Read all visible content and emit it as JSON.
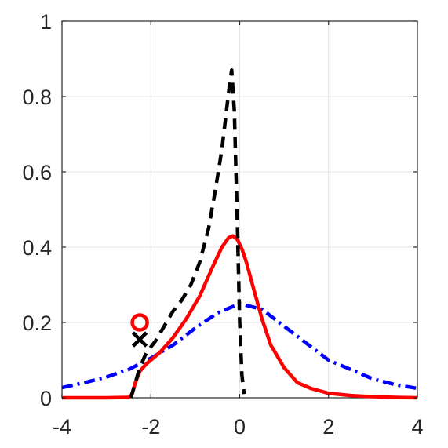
{
  "chart_data": {
    "type": "line",
    "title": "",
    "xlabel": "",
    "ylabel": "",
    "xlim": [
      -4,
      4
    ],
    "ylim": [
      0,
      1
    ],
    "grid": true,
    "x_ticks": [
      -4,
      -2,
      0,
      2,
      4
    ],
    "y_ticks": [
      0,
      0.2,
      0.4,
      0.6,
      0.8,
      1
    ],
    "x_tick_labels": [
      "-4",
      "-2",
      "0",
      "2",
      "4"
    ],
    "y_tick_labels": [
      "0",
      "0.2",
      "0.4",
      "0.6",
      "0.8",
      "1"
    ],
    "series": [
      {
        "style": "dash-dot",
        "color": "#0000ff",
        "x": [
          -4.0,
          -3.5,
          -3.0,
          -2.5,
          -2.0,
          -1.5,
          -1.0,
          -0.5,
          0.0,
          0.5,
          1.0,
          1.5,
          2.0,
          2.5,
          3.0,
          3.5,
          4.0
        ],
        "y": [
          0.027,
          0.04,
          0.055,
          0.075,
          0.105,
          0.14,
          0.185,
          0.225,
          0.25,
          0.235,
          0.19,
          0.145,
          0.1,
          0.075,
          0.05,
          0.035,
          0.025
        ]
      },
      {
        "style": "solid",
        "color": "#ff0000",
        "x": [
          -4.0,
          -3.0,
          -2.5,
          -2.42,
          -2.35,
          -2.25,
          -2.1,
          -2.0,
          -1.8,
          -1.5,
          -1.2,
          -0.9,
          -0.6,
          -0.4,
          -0.25,
          -0.15,
          -0.05,
          0.05,
          0.15,
          0.3,
          0.5,
          0.7,
          1.0,
          1.3,
          1.6,
          2.0,
          2.5,
          3.0,
          3.5,
          4.0
        ],
        "y": [
          0.0,
          0.0,
          0.001,
          0.01,
          0.04,
          0.07,
          0.09,
          0.1,
          0.12,
          0.16,
          0.21,
          0.27,
          0.35,
          0.4,
          0.425,
          0.43,
          0.42,
          0.395,
          0.36,
          0.295,
          0.21,
          0.14,
          0.08,
          0.04,
          0.025,
          0.012,
          0.006,
          0.003,
          0.001,
          0.0
        ],
        "marker": {
          "symbol": "circle",
          "x": -2.25,
          "y": 0.2
        }
      },
      {
        "style": "dashed",
        "color": "#000000",
        "x": [
          -2.45,
          -2.35,
          -2.25,
          -2.1,
          -1.9,
          -1.7,
          -1.5,
          -1.3,
          -1.1,
          -0.9,
          -0.7,
          -0.55,
          -0.4,
          -0.3,
          -0.22,
          -0.18,
          -0.12,
          -0.05,
          0.0,
          0.05,
          0.1
        ],
        "y": [
          0.0,
          0.04,
          0.08,
          0.12,
          0.15,
          0.19,
          0.23,
          0.26,
          0.3,
          0.36,
          0.45,
          0.55,
          0.66,
          0.76,
          0.84,
          0.87,
          0.76,
          0.45,
          0.2,
          0.06,
          0.01
        ],
        "marker": {
          "symbol": "cross",
          "x": -2.25,
          "y": 0.155
        }
      }
    ]
  }
}
